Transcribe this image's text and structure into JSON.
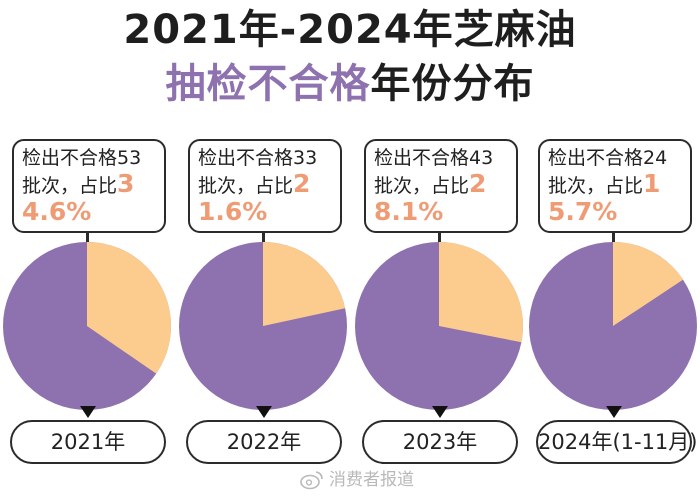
{
  "title": {
    "line1": "2021年-2024年芝麻油",
    "line2_highlight": "抽检不合格",
    "line2_rest": "年份分布"
  },
  "colors": {
    "main": "#8e72b0",
    "share": "#fbcc8e",
    "percent_text": "#ef9b74"
  },
  "chart_data": {
    "type": "pie",
    "title": "2021年-2024年芝麻油抽检不合格年份分布",
    "series": [
      {
        "name": "2021年",
        "label": "2021年",
        "batches": 53,
        "share": 34.6,
        "callout_prefix": "检出不合格53批次，占比",
        "callout_pct": "34.6%"
      },
      {
        "name": "2022年",
        "label": "2022年",
        "batches": 33,
        "share": 21.6,
        "callout_prefix": "检出不合格33批次，占比",
        "callout_pct": "21.6%"
      },
      {
        "name": "2023年",
        "label": "2023年",
        "batches": 43,
        "share": 28.1,
        "callout_prefix": "检出不合格43批次，占比",
        "callout_pct": "28.1%"
      },
      {
        "name": "2024年",
        "label": "2024年(1-11月)",
        "batches": 24,
        "share": 15.7,
        "callout_prefix": "检出不合格24批次，占比",
        "callout_pct": "15.7%"
      }
    ]
  },
  "watermark": "消费者报道"
}
